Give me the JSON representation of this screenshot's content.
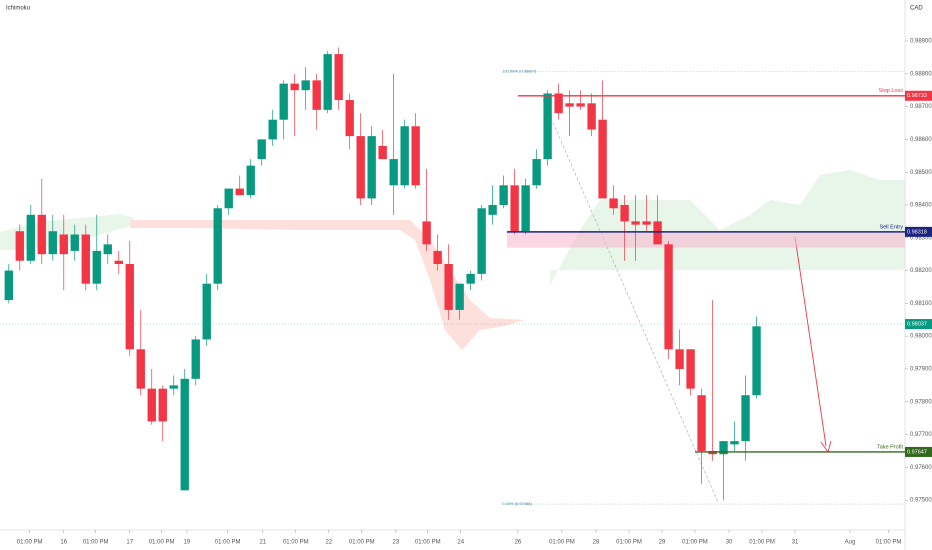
{
  "chart_data": {
    "type": "candlestick",
    "title": "Ichimoku",
    "currency": "CAD",
    "up_color": "#089981",
    "down_color": "#f23645",
    "open": [
      0.9811,
      0.9832,
      0.9823,
      0.9837,
      0.9825,
      0.9831,
      0.9826,
      0.9831,
      0.9816,
      0.9825,
      0.9823,
      0.9822,
      0.9796,
      0.9784,
      0.9784,
      0.9784,
      0.9753,
      0.9787,
      0.9799,
      0.9816,
      0.9839,
      0.9845,
      0.9843,
      0.9854,
      0.986,
      0.9866,
      0.9877,
      0.9875,
      0.9878,
      0.9869,
      0.9886,
      0.9872,
      0.9861,
      0.9842,
      0.9858,
      0.9846,
      0.9846,
      0.9864,
      0.9835,
      0.9826,
      0.9822,
      0.9808,
      0.9816,
      0.9819,
      0.9837,
      0.984,
      0.9846,
      0.9832,
      0.9846,
      0.9854,
      0.9874,
      0.9871,
      0.9871,
      0.9871,
      0.9866,
      0.9842,
      0.984,
      0.9835,
      0.9835,
      0.9835,
      0.9828,
      0.9796,
      0.9796,
      0.9782,
      0.9765,
      0.9764,
      0.9767,
      0.9768,
      0.9782
    ],
    "high": [
      0.9822,
      0.9834,
      0.984,
      0.9848,
      0.9837,
      0.9837,
      0.9834,
      0.9834,
      0.9837,
      0.9831,
      0.9826,
      0.9829,
      0.9808,
      0.979,
      0.9785,
      0.9788,
      0.979,
      0.98,
      0.9819,
      0.984,
      0.9845,
      0.9849,
      0.9854,
      0.986,
      0.9869,
      0.9878,
      0.988,
      0.9882,
      0.988,
      0.9887,
      0.9888,
      0.9874,
      0.9868,
      0.9864,
      0.9863,
      0.988,
      0.9866,
      0.9868,
      0.9851,
      0.9831,
      0.9828,
      0.9816,
      0.982,
      0.984,
      0.9846,
      0.9849,
      0.9851,
      0.9848,
      0.9857,
      0.9875,
      0.9877,
      0.9875,
      0.9875,
      0.9874,
      0.9878,
      0.9846,
      0.9843,
      0.9843,
      0.9843,
      0.9843,
      0.9829,
      0.9802,
      0.9796,
      0.9784,
      0.9811,
      0.9768,
      0.9774,
      0.9788,
      0.9806
    ],
    "low": [
      0.981,
      0.982,
      0.9822,
      0.9822,
      0.9823,
      0.9814,
      0.9823,
      0.9814,
      0.9814,
      0.9822,
      0.9819,
      0.9794,
      0.9782,
      0.9773,
      0.9768,
      0.9782,
      0.9753,
      0.9785,
      0.9797,
      0.9814,
      0.9837,
      0.9843,
      0.9842,
      0.9852,
      0.9858,
      0.986,
      0.9861,
      0.9869,
      0.9863,
      0.9868,
      0.9869,
      0.9857,
      0.984,
      0.984,
      0.9854,
      0.9837,
      0.9845,
      0.9845,
      0.9826,
      0.982,
      0.9805,
      0.9805,
      0.9814,
      0.9817,
      0.9834,
      0.9839,
      0.9831,
      0.9831,
      0.9845,
      0.9852,
      0.9866,
      0.9861,
      0.9869,
      0.9861,
      0.9842,
      0.9837,
      0.9823,
      0.9823,
      0.9832,
      0.9828,
      0.9793,
      0.9785,
      0.9782,
      0.9755,
      0.9762,
      0.975,
      0.9765,
      0.9762,
      0.9781
    ],
    "close": [
      0.982,
      0.9823,
      0.9837,
      0.9825,
      0.9832,
      0.9825,
      0.9831,
      0.9816,
      0.9826,
      0.9828,
      0.9822,
      0.9796,
      0.9784,
      0.9774,
      0.9774,
      0.9785,
      0.9787,
      0.9799,
      0.9816,
      0.9839,
      0.9845,
      0.9843,
      0.9852,
      0.986,
      0.9866,
      0.9877,
      0.9875,
      0.9878,
      0.9869,
      0.9886,
      0.9872,
      0.9861,
      0.9842,
      0.9861,
      0.9854,
      0.9854,
      0.9864,
      0.9846,
      0.9828,
      0.9822,
      0.9808,
      0.9816,
      0.9819,
      0.9839,
      0.984,
      0.9846,
      0.9832,
      0.9846,
      0.9854,
      0.9874,
      0.9868,
      0.987,
      0.987,
      0.9863,
      0.9842,
      0.9839,
      0.9835,
      0.9834,
      0.9834,
      0.9828,
      0.9796,
      0.979,
      0.9784,
      0.9765,
      0.9764,
      0.9768,
      0.9768,
      0.9782,
      0.9803
    ],
    "xlim": [
      -0.8,
      81.5
    ],
    "xticks": [
      {
        "value": 1.9,
        "label": "01:00 PM"
      },
      {
        "value": 5,
        "label": "16"
      },
      {
        "value": 7.9,
        "label": "01:00 PM"
      },
      {
        "value": 11,
        "label": "17"
      },
      {
        "value": 13.9,
        "label": "01:00 PM"
      },
      {
        "value": 16.2,
        "label": "19"
      },
      {
        "value": 19.9,
        "label": "01:00 PM"
      },
      {
        "value": 23.1,
        "label": "21"
      },
      {
        "value": 26.1,
        "label": "01:00 PM"
      },
      {
        "value": 29.1,
        "label": "22"
      },
      {
        "value": 32.1,
        "label": "01:00 PM"
      },
      {
        "value": 35.2,
        "label": "23"
      },
      {
        "value": 38.1,
        "label": "01:00 PM"
      },
      {
        "value": 41.1,
        "label": "24"
      },
      {
        "value": 46.3,
        "label": "26"
      },
      {
        "value": 50.3,
        "label": "01:00 PM"
      },
      {
        "value": 53.4,
        "label": "28"
      },
      {
        "value": 56.4,
        "label": "01:00 PM"
      },
      {
        "value": 59.4,
        "label": "29"
      },
      {
        "value": 62.4,
        "label": "01:00 PM"
      },
      {
        "value": 65.5,
        "label": "30"
      },
      {
        "value": 68.5,
        "label": "01:00 PM"
      },
      {
        "value": 71.5,
        "label": "31"
      },
      {
        "value": 76.5,
        "label": "Aug"
      },
      {
        "value": 80,
        "label": "01:00 PM"
      }
    ],
    "ylim": [
      0.97409,
      0.99025
    ],
    "yticks": [
      {
        "value": 0.989,
        "label": "0.98900"
      },
      {
        "value": 0.988,
        "label": "0.98800"
      },
      {
        "value": 0.987,
        "label": "0.98700"
      },
      {
        "value": 0.986,
        "label": "0.98600"
      },
      {
        "value": 0.985,
        "label": "0.98500"
      },
      {
        "value": 0.984,
        "label": "0.98400"
      },
      {
        "value": 0.983,
        "label": "0.98300"
      },
      {
        "value": 0.982,
        "label": "0.98200"
      },
      {
        "value": 0.981,
        "label": "0.98100"
      },
      {
        "value": 0.98,
        "label": "0.98000"
      },
      {
        "value": 0.979,
        "label": "0.97900"
      },
      {
        "value": 0.978,
        "label": "0.97800"
      },
      {
        "value": 0.977,
        "label": "0.97700"
      },
      {
        "value": 0.976,
        "label": "0.97600"
      },
      {
        "value": 0.975,
        "label": "0.97500"
      }
    ],
    "zone": {
      "from": 45.3,
      "low": 0.9827,
      "high": 0.98318,
      "color": "#f8bbd0"
    },
    "fib": [
      {
        "label": "100.00% (0.98807)",
        "value": 0.98807,
        "from": 45.6
      },
      {
        "label": "0.00% (0.97488)",
        "value": 0.97488,
        "from": 45.6
      }
    ],
    "last_price": {
      "value": 0.98037,
      "color": "#089981"
    },
    "levels": [
      {
        "name": "Stop Loss",
        "value": 0.98733,
        "color": "#f23645",
        "from": 46.3
      },
      {
        "name": "Sell Entry",
        "value": 0.98318,
        "color": "#1a237e",
        "from": 45.3
      },
      {
        "name": "Take Profit",
        "value": 0.97647,
        "color": "#33691e",
        "from": 62.4
      }
    ]
  }
}
